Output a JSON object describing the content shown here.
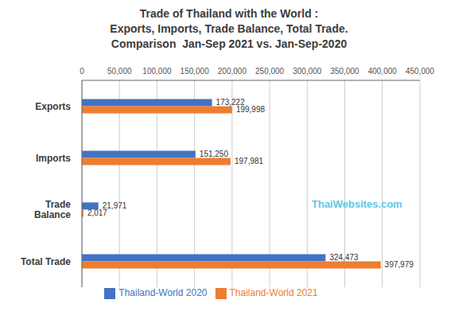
{
  "chart_data": {
    "type": "bar",
    "orientation": "horizontal",
    "title": "Trade of Thailand with the World :\nExports, Imports, Trade Balance, Total Trade.\nComparison  Jan-Sep 2021 vs. Jan-Sep-2020",
    "categories": [
      "Exports",
      "Imports",
      "Trade\nBalance",
      "Total Trade"
    ],
    "series": [
      {
        "name": "Thailand-World 2020",
        "color": "#4472C4",
        "values": [
          173222,
          151250,
          21971,
          324473
        ],
        "value_labels": [
          "173,222",
          "151,250",
          "21,971",
          "324,473"
        ]
      },
      {
        "name": "Thailand-World 2021",
        "color": "#ED7D31",
        "values": [
          199998,
          197981,
          2017,
          397979
        ],
        "value_labels": [
          "199,998",
          "197,981",
          "2,017",
          "397,979"
        ]
      }
    ],
    "xlim": [
      0,
      450000
    ],
    "xticks": [
      0,
      {
        "value": 50000,
        "label": "50,000"
      },
      {
        "value": 100000,
        "label": "100,000"
      },
      {
        "value": 150000,
        "label": "150,000"
      },
      {
        "value": 200000,
        "label": "200,000"
      },
      {
        "value": 250000,
        "label": "250,000"
      },
      {
        "value": 300000,
        "label": "300,000"
      },
      {
        "value": 350000,
        "label": "350,000"
      },
      {
        "value": 400000,
        "label": "400,000"
      },
      {
        "value": 450000,
        "label": "450,000"
      }
    ],
    "grid": true,
    "legend": "bottom",
    "data_labels": true,
    "annotations": [
      {
        "text": "ThaiWebsites.com",
        "color": "#5BC8E8"
      }
    ]
  }
}
